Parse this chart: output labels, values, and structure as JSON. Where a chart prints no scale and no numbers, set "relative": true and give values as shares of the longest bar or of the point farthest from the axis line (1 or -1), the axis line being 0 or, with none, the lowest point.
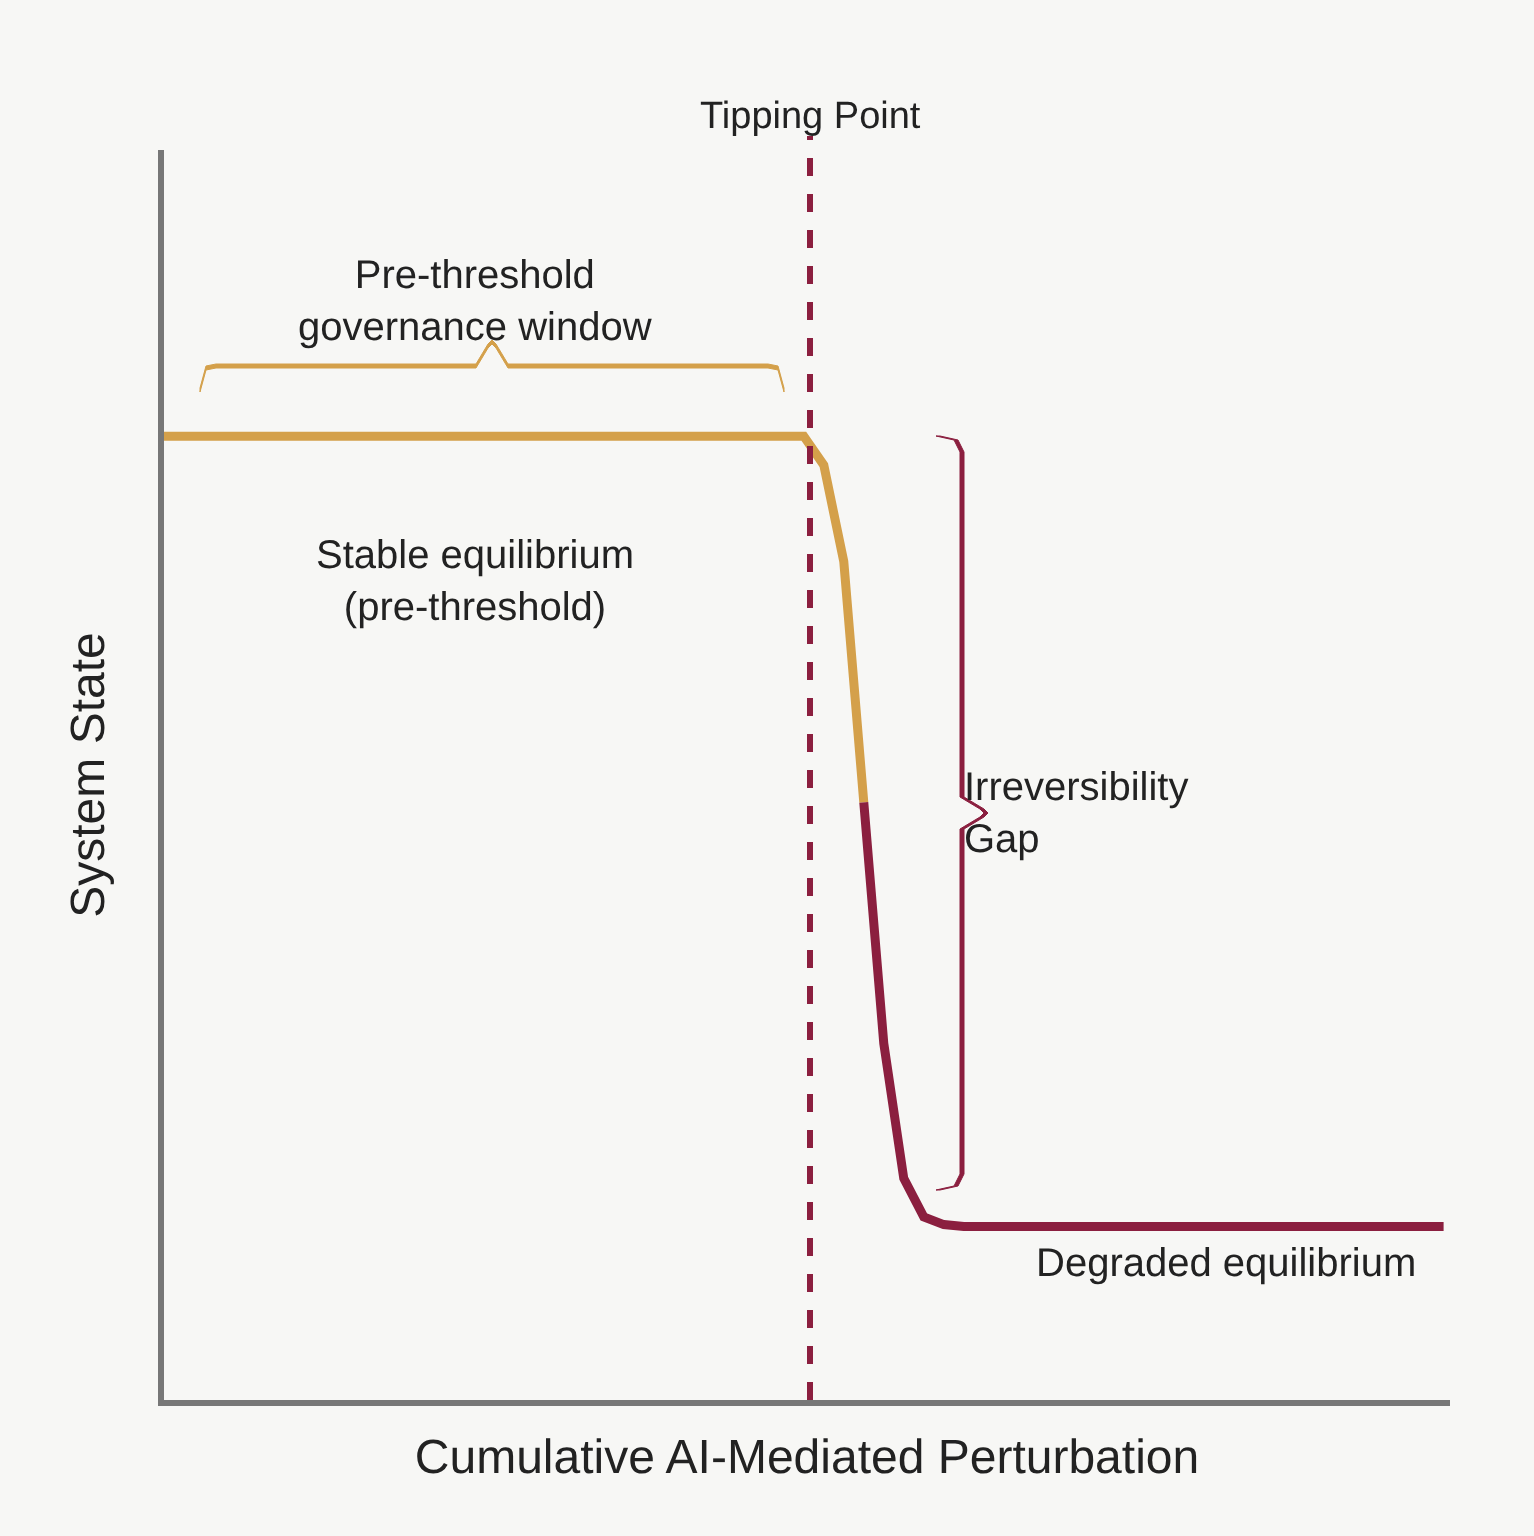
{
  "chart_data": {
    "type": "line",
    "relative": true,
    "xlabel": "Cumulative AI-Mediated Perturbation",
    "ylabel": "System State",
    "categories": [
      null,
      null,
      null,
      null,
      null,
      null,
      null,
      null,
      null,
      null,
      null,
      null,
      null,
      null,
      null,
      null,
      null,
      null,
      null,
      null,
      null,
      null,
      null,
      null,
      null,
      null,
      null,
      null,
      null,
      null,
      null,
      null,
      null,
      null,
      null,
      null,
      null,
      null,
      null,
      null,
      null,
      null,
      null,
      null,
      null,
      null,
      null,
      null,
      null,
      null,
      null,
      null,
      null,
      null,
      null,
      null,
      null,
      null,
      null,
      null,
      null,
      null,
      null,
      null,
      null
    ],
    "series": [
      {
        "color": "#d4a04a",
        "values": [
          1,
          1,
          1,
          1,
          1,
          1,
          1,
          1,
          1,
          1,
          1,
          1,
          1,
          1,
          1,
          1,
          1,
          1,
          1,
          1,
          1,
          1,
          1,
          1,
          1,
          1,
          1,
          1,
          1,
          1,
          1,
          1,
          1,
          0.97,
          0.87,
          0.62,
          null,
          null,
          null,
          null,
          null,
          null,
          null,
          null,
          null,
          null,
          null,
          null,
          null,
          null,
          null,
          null,
          null,
          null,
          null,
          null,
          null,
          null,
          null,
          null,
          null,
          null,
          null,
          null,
          null
        ]
      },
      {
        "color": "#8b1f3f",
        "values": [
          null,
          null,
          null,
          null,
          null,
          null,
          null,
          null,
          null,
          null,
          null,
          null,
          null,
          null,
          null,
          null,
          null,
          null,
          null,
          null,
          null,
          null,
          null,
          null,
          null,
          null,
          null,
          null,
          null,
          null,
          null,
          null,
          null,
          null,
          null,
          0.62,
          0.37,
          0.23,
          0.19,
          0.182,
          0.18,
          0.18,
          0.18,
          0.18,
          0.18,
          0.18,
          0.18,
          0.18,
          0.18,
          0.18,
          0.18,
          0.18,
          0.18,
          0.18,
          0.18,
          0.18,
          0.18,
          0.18,
          0.18,
          0.18,
          0.18,
          0.18,
          0.18,
          0.18,
          0.18
        ]
      }
    ],
    "annotations": [
      "Tipping Point",
      "Pre-threshold\ngovernance window",
      "Stable equilibrium\n(pre-threshold)",
      "Irreversibility\nGap",
      "Degraded equilibrium"
    ],
    "tick_labels": false,
    "marker": "none",
    "line_style": "solid"
  }
}
